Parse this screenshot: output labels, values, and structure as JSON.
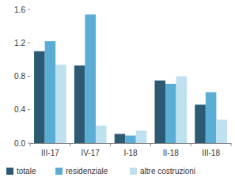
{
  "chart_data": {
    "type": "bar",
    "categories": [
      "III-17",
      "IV-17",
      "I-18",
      "II-18",
      "III-18"
    ],
    "series": [
      {
        "name": "totale",
        "color": "#2b5a72",
        "values": [
          1.1,
          0.93,
          0.11,
          0.75,
          0.46
        ]
      },
      {
        "name": "residenziale",
        "color": "#5aaed6",
        "values": [
          1.22,
          1.54,
          0.09,
          0.71,
          0.61
        ]
      },
      {
        "name": "altre costruzioni",
        "color": "#bfe0ef",
        "values": [
          0.94,
          0.21,
          0.15,
          0.8,
          0.28
        ]
      }
    ],
    "ylim": [
      0,
      1.6
    ],
    "yticks": [
      {
        "value": 0,
        "label": "0.0"
      },
      0.4,
      0.8,
      1.2,
      1.6
    ],
    "grid": false,
    "legend": "bottom"
  }
}
